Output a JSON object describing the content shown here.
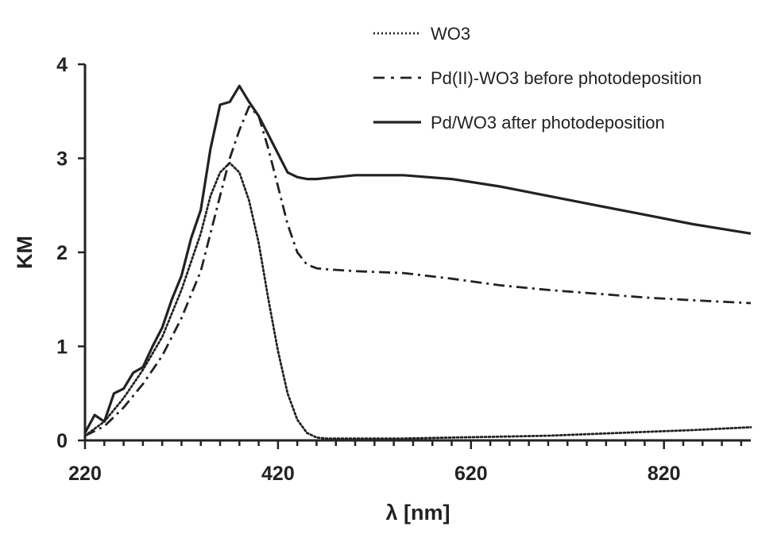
{
  "chart_data": {
    "type": "line",
    "xlabel": "λ [nm]",
    "ylabel": "KM",
    "xlim": [
      220,
      910
    ],
    "ylim": [
      0,
      4
    ],
    "x_ticks": [
      220,
      420,
      620,
      820
    ],
    "y_ticks": [
      0,
      1,
      2,
      3,
      4
    ],
    "grid": false,
    "legend_position": "top-right",
    "colors": {
      "line": "#222222",
      "axis": "#222222"
    },
    "series": [
      {
        "name": "WO3",
        "style": "dotted",
        "x": [
          220,
          240,
          260,
          280,
          300,
          320,
          340,
          350,
          360,
          370,
          380,
          390,
          400,
          410,
          420,
          430,
          440,
          450,
          460,
          470,
          480,
          500,
          550,
          600,
          650,
          700,
          750,
          800,
          850,
          910
        ],
        "y": [
          0.05,
          0.2,
          0.45,
          0.75,
          1.1,
          1.6,
          2.2,
          2.6,
          2.85,
          2.95,
          2.85,
          2.55,
          2.1,
          1.5,
          0.95,
          0.5,
          0.22,
          0.08,
          0.03,
          0.02,
          0.02,
          0.02,
          0.02,
          0.03,
          0.04,
          0.05,
          0.07,
          0.09,
          0.11,
          0.14
        ]
      },
      {
        "name": "Pd(II)-WO3 before photodeposition",
        "style": "dashdot",
        "x": [
          220,
          240,
          260,
          280,
          300,
          320,
          340,
          360,
          370,
          380,
          390,
          400,
          410,
          420,
          430,
          440,
          450,
          460,
          470,
          500,
          550,
          600,
          650,
          700,
          750,
          800,
          850,
          910
        ],
        "y": [
          0.05,
          0.15,
          0.35,
          0.6,
          0.9,
          1.3,
          1.8,
          2.6,
          3.0,
          3.3,
          3.55,
          3.45,
          3.1,
          2.7,
          2.3,
          2.0,
          1.87,
          1.83,
          1.82,
          1.8,
          1.78,
          1.72,
          1.65,
          1.6,
          1.56,
          1.52,
          1.49,
          1.46
        ]
      },
      {
        "name": "Pd/WO3 after photodeposition",
        "style": "solid",
        "x": [
          220,
          230,
          240,
          250,
          260,
          270,
          280,
          290,
          300,
          310,
          320,
          330,
          340,
          350,
          360,
          370,
          380,
          390,
          400,
          410,
          420,
          430,
          440,
          450,
          460,
          480,
          500,
          550,
          600,
          650,
          700,
          750,
          800,
          850,
          910
        ],
        "y": [
          0.08,
          0.27,
          0.2,
          0.5,
          0.55,
          0.72,
          0.78,
          1.0,
          1.2,
          1.5,
          1.75,
          2.15,
          2.45,
          3.1,
          3.57,
          3.6,
          3.77,
          3.6,
          3.45,
          3.25,
          3.05,
          2.85,
          2.8,
          2.78,
          2.78,
          2.8,
          2.82,
          2.82,
          2.78,
          2.7,
          2.6,
          2.5,
          2.4,
          2.3,
          2.2
        ]
      }
    ]
  }
}
